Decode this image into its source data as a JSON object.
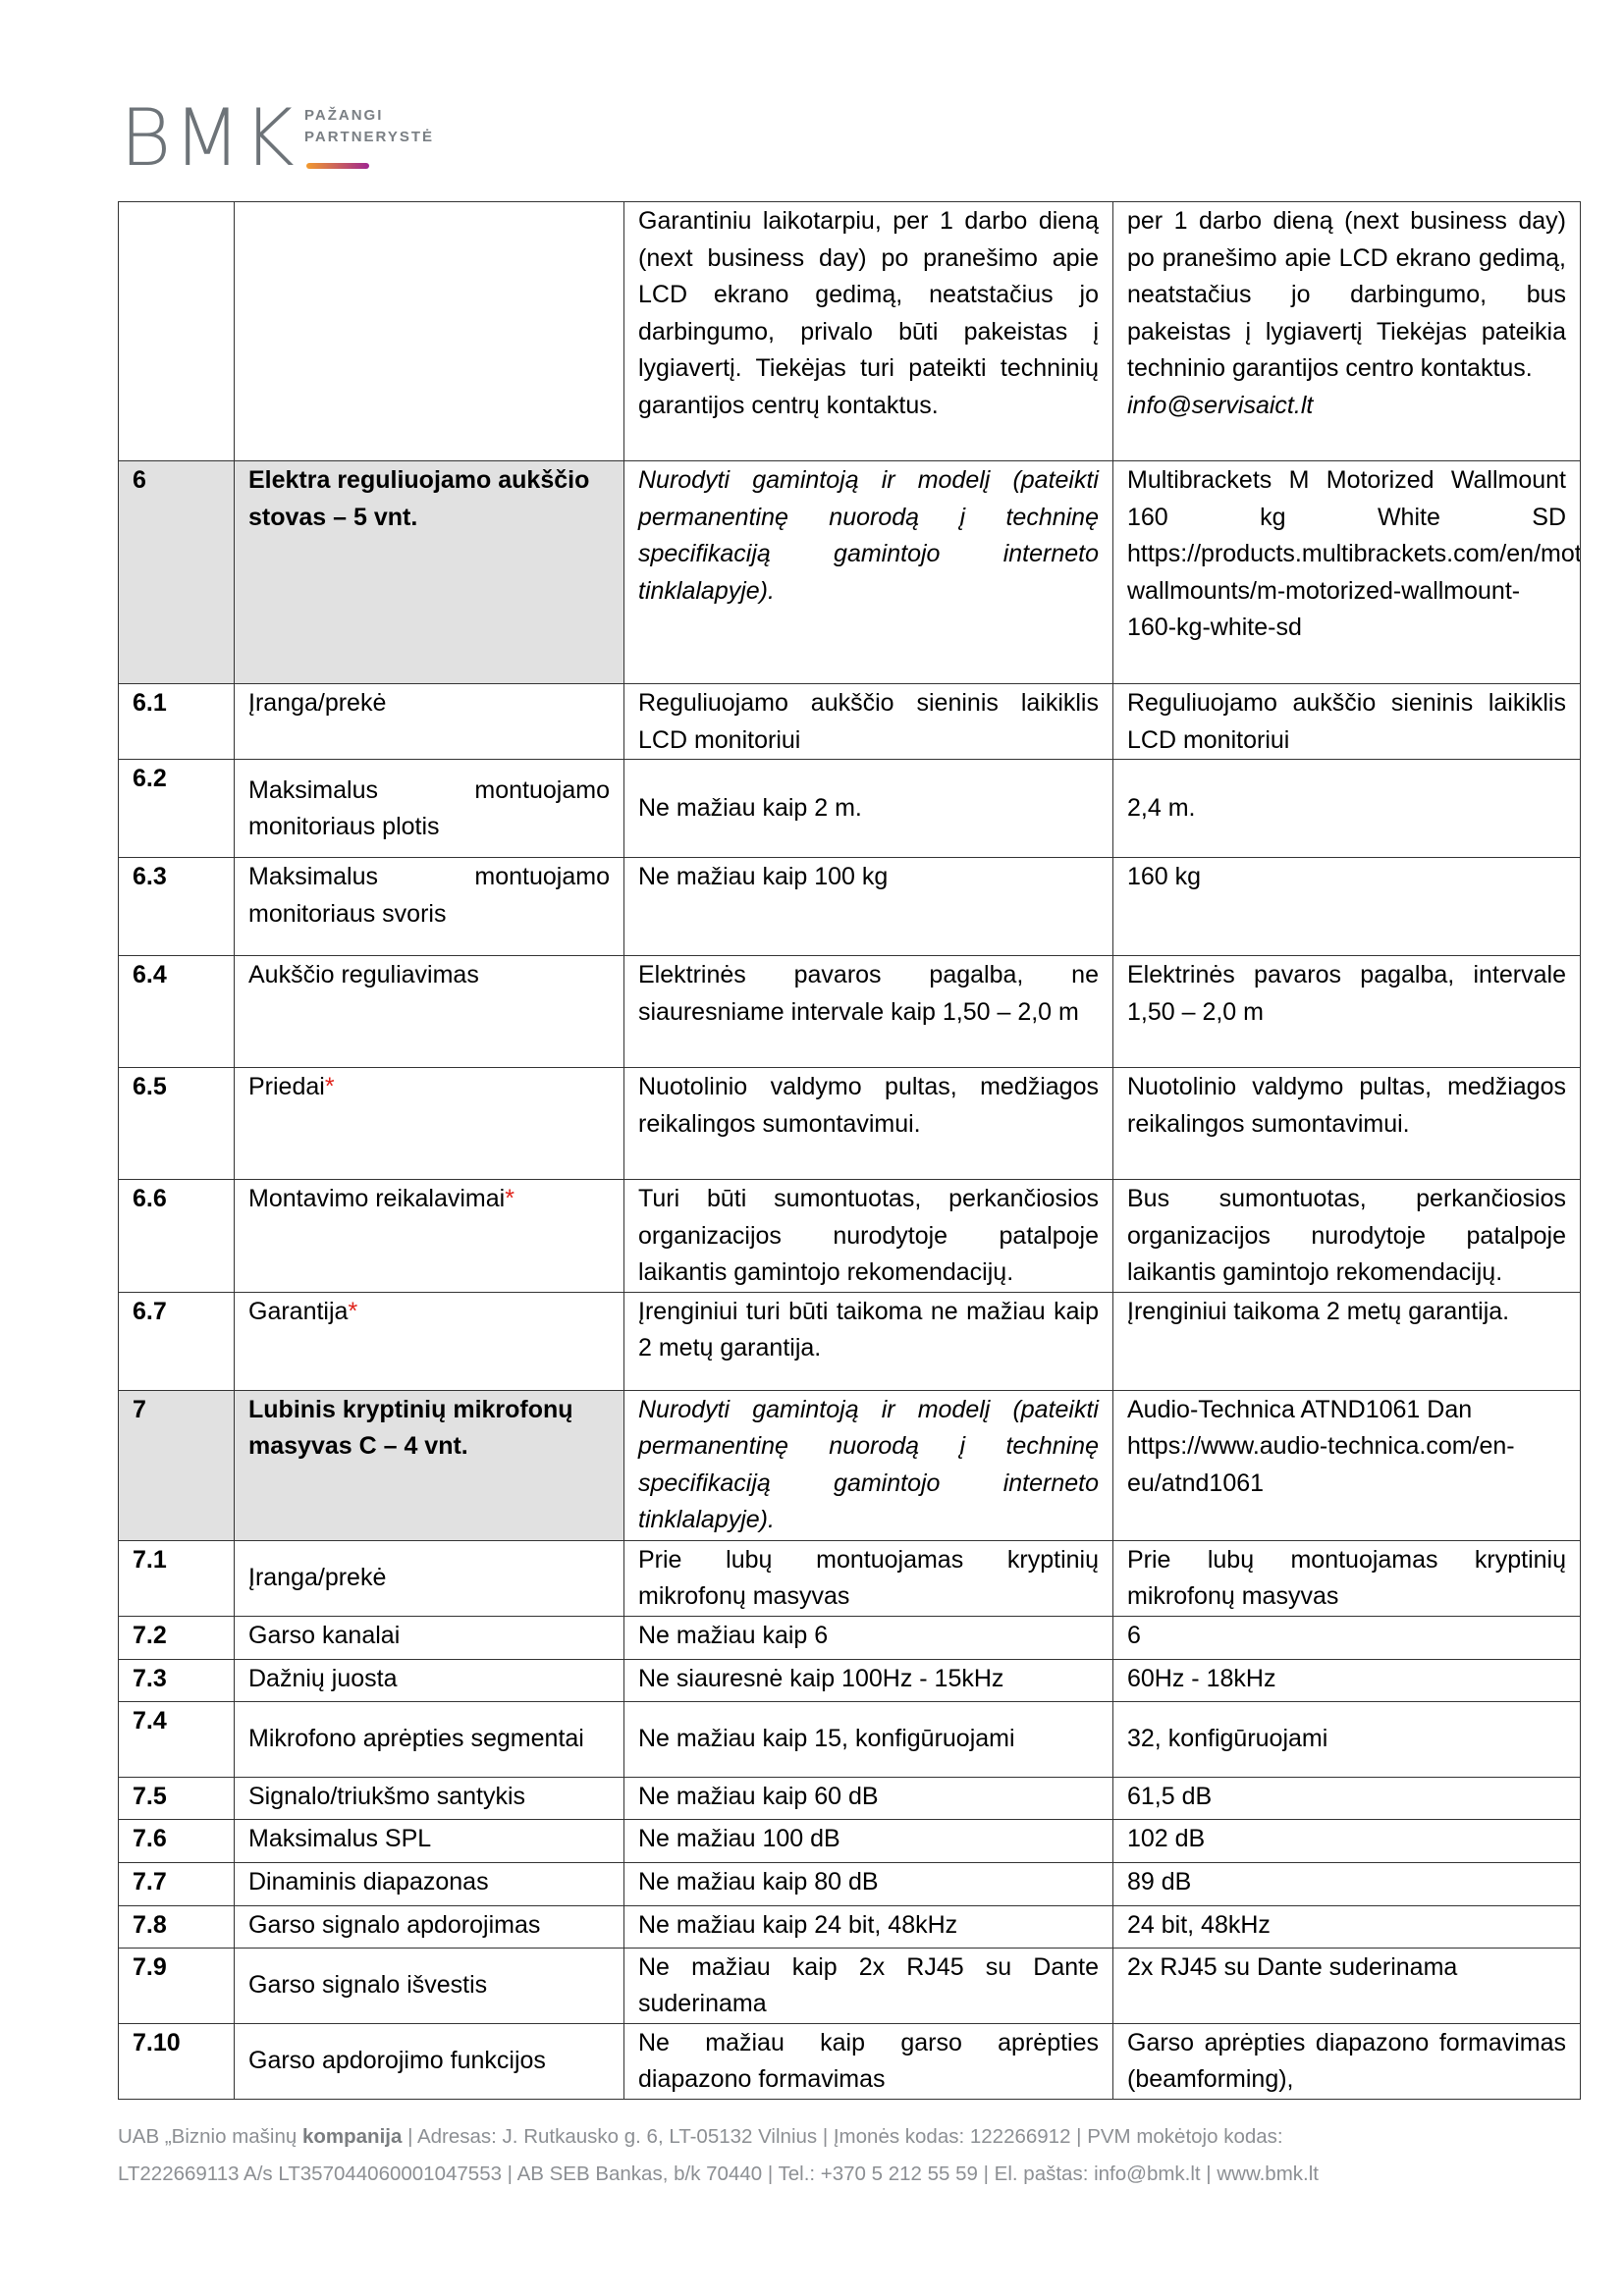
{
  "logo": {
    "brand": "BMK",
    "tagline_1": "PAŽANGI",
    "tagline_2": "PARTNERYSTĖ",
    "accent_gradient": [
      "#f29a2e",
      "#a0268f"
    ]
  },
  "table": {
    "rows": [
      {
        "num": "",
        "name": "",
        "requirement": "Garantiniu laikotarpiu, per 1 darbo dieną (next business day) po pranešimo apie LCD ekrano gedimą, neatstačius jo darbingumo, privalo būti pakeistas į lygiavertį. Tiekėjas turi pateikti techninių garantijos centrų kontaktus.",
        "offer": "per 1 darbo dieną (next business day) po pranešimo apie LCD ekrano gedimą, neatstačius jo darbingumo, bus pakeistas į lygiavertį Tiekėjas pateikia techninio garantijos centro kontaktus.",
        "offer_email": "info@servisaict.lt"
      },
      {
        "num": "6",
        "name": "Elektra reguliuojamo aukščio stovas – 5 vnt.",
        "requirement": "Nurodyti gamintoją ir modelį (pateikti permanentinę nuorodą į techninę specifikaciją gamintojo interneto tinklalapyje).",
        "offer": "Multibrackets M Motorized Wallmount 160 kg White SD https://products.multibrackets.com/en/motorized/motorized-wallmounts/m-motorized-wallmount-160-kg-white-sd",
        "section": true
      },
      {
        "num": "6.1",
        "name": "Įranga/prekė",
        "requirement": "Reguliuojamo aukščio sieninis laikiklis LCD monitoriui",
        "offer": "Reguliuojamo aukščio sieninis laikiklis LCD monitoriui"
      },
      {
        "num": "6.2",
        "name": "Maksimalus montuojamo monitoriaus plotis",
        "requirement": "Ne mažiau kaip 2 m.",
        "offer": "2,4 m."
      },
      {
        "num": "6.3",
        "name": "Maksimalus montuojamo monitoriaus svoris",
        "requirement": "Ne mažiau kaip 100 kg",
        "offer": "160 kg"
      },
      {
        "num": "6.4",
        "name": "Aukščio reguliavimas",
        "requirement": "Elektrinės pavaros pagalba, ne siauresniame intervale kaip 1,50 – 2,0 m",
        "offer": "Elektrinės pavaros pagalba, intervale 1,50 – 2,0 m"
      },
      {
        "num": "6.5",
        "name": "Priedai",
        "required_mark": "*",
        "requirement": "Nuotolinio valdymo pultas, medžiagos reikalingos sumontavimui.",
        "offer": "Nuotolinio valdymo pultas, medžiagos reikalingos sumontavimui."
      },
      {
        "num": "6.6",
        "name": "Montavimo reikalavimai",
        "required_mark": "*",
        "requirement": "Turi būti sumontuotas, perkančiosios organizacijos nurodytoje patalpoje laikantis gamintojo rekomendacijų.",
        "offer": "Bus sumontuotas, perkančiosios organizacijos nurodytoje patalpoje laikantis gamintojo rekomendacijų."
      },
      {
        "num": "6.7",
        "name": "Garantija",
        "required_mark": "*",
        "requirement": "Įrenginiui turi būti taikoma ne mažiau kaip 2 metų garantija.",
        "offer": "Įrenginiui taikoma 2 metų garantija."
      },
      {
        "num": "7",
        "name": "Lubinis kryptinių mikrofonų masyvas C – 4 vnt.",
        "requirement": "Nurodyti gamintoją ir modelį (pateikti permanentinę nuorodą į techninę specifikaciją gamintojo interneto tinklalapyje).",
        "offer": "Audio-Technica ATND1061 Dan https://www.audio-technica.com/en-eu/atnd1061",
        "section": true
      },
      {
        "num": "7.1",
        "name": "Įranga/prekė",
        "requirement": "Prie lubų montuojamas kryptinių mikrofonų masyvas",
        "offer": "Prie lubų montuojamas kryptinių mikrofonų masyvas"
      },
      {
        "num": "7.2",
        "name": "Garso kanalai",
        "requirement": "Ne mažiau kaip 6",
        "offer": "6"
      },
      {
        "num": "7.3",
        "name": "Dažnių juosta",
        "requirement": "Ne siauresnė kaip 100Hz - 15kHz",
        "offer": "60Hz - 18kHz"
      },
      {
        "num": "7.4",
        "name": "Mikrofono aprėpties segmentai",
        "requirement": "Ne mažiau kaip 15, konfigūruojami",
        "offer": "32, konfigūruojami"
      },
      {
        "num": "7.5",
        "name": "Signalo/triukšmo santykis",
        "requirement": "Ne mažiau kaip 60 dB",
        "offer": "61,5 dB"
      },
      {
        "num": "7.6",
        "name": "Maksimalus SPL",
        "requirement": "Ne mažiau 100 dB",
        "offer": "102 dB"
      },
      {
        "num": "7.7",
        "name": "Dinaminis diapazonas",
        "requirement": "Ne mažiau kaip 80 dB",
        "offer": "89 dB"
      },
      {
        "num": "7.8",
        "name": "Garso signalo apdorojimas",
        "requirement": "Ne mažiau kaip 24 bit, 48kHz",
        "offer": "24 bit, 48kHz"
      },
      {
        "num": "7.9",
        "name": "Garso signalo išvestis",
        "requirement": "Ne mažiau kaip 2x RJ45 su Dante suderinama",
        "offer": "2x RJ45 su Dante suderinama"
      },
      {
        "num": "7.10",
        "name": "Garso apdorojimo funkcijos",
        "requirement": "Ne mažiau kaip garso aprėpties diapazono formavimas",
        "offer": "Garso aprėpties diapazono formavimas (beamforming),"
      }
    ]
  },
  "footer": {
    "company_prefix": "UAB „Biznio mašinų ",
    "company_bold": "kompanija",
    "line1_rest": " | Adresas: J. Rutkausko g. 6, LT-05132 Vilnius | Įmonės kodas: 122266912 | PVM mokėtojo kodas:",
    "line2": "LT222669113 A/s LT357044060001047553 | AB SEB Bankas, b/k 70440 | Tel.: +370 5 212 55 59 | El. paštas: info@bmk.lt | www.bmk.lt"
  }
}
